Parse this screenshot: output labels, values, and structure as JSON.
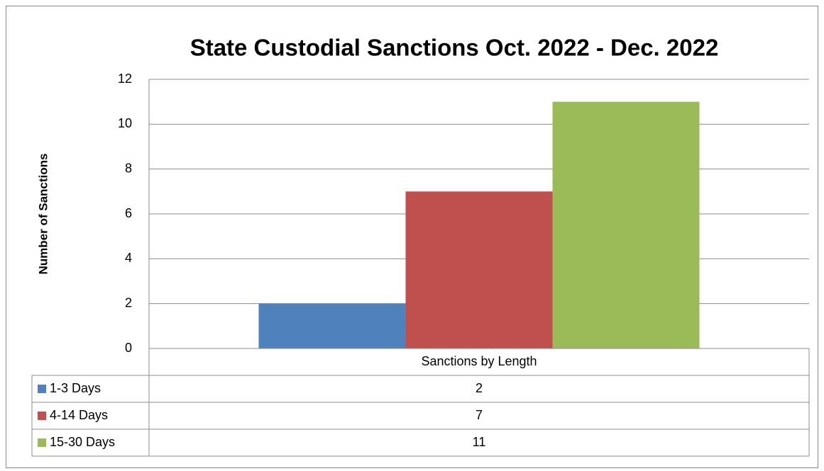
{
  "chart_data": {
    "type": "bar",
    "title": "State Custodial Sanctions Oct. 2022 - Dec. 2022",
    "y_label": "Number of Sanctions",
    "categories": [
      "Sanctions by Length"
    ],
    "series": [
      {
        "name": "1-3 Days",
        "color": "#4f81bd",
        "values": [
          2
        ]
      },
      {
        "name": "4-14 Days",
        "color": "#c0504d",
        "values": [
          7
        ]
      },
      {
        "name": "15-30 Days",
        "color": "#9bbb59",
        "values": [
          11
        ]
      }
    ],
    "ylim": [
      0,
      12
    ],
    "yticks": [
      0,
      2,
      4,
      6,
      8,
      10,
      12
    ],
    "grid": true
  }
}
